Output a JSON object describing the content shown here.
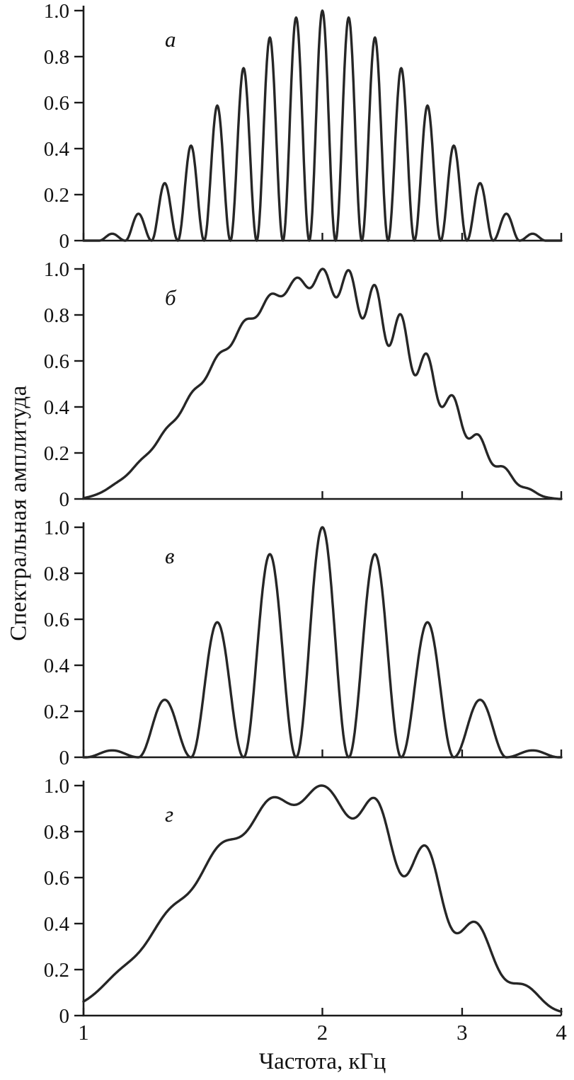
{
  "figure": {
    "x_title": "Частота, кГц",
    "y_title": "Спектральная амплитуда",
    "x_scale": "log",
    "x_range_khz": [
      1,
      4
    ],
    "y_range": [
      0,
      1
    ],
    "x_ticks": [
      {
        "value": 1,
        "label": "1"
      },
      {
        "value": 2,
        "label": "2"
      },
      {
        "value": 3,
        "label": "3"
      },
      {
        "value": 4,
        "label": "4"
      }
    ],
    "y_ticks": [
      {
        "value": 0,
        "label": "0"
      },
      {
        "value": 0.2,
        "label": "0.2"
      },
      {
        "value": 0.4,
        "label": "0.4"
      },
      {
        "value": 0.6,
        "label": "0.6"
      },
      {
        "value": 0.8,
        "label": "0.8"
      },
      {
        "value": 1.0,
        "label": "1.0"
      }
    ],
    "line_color": "#262626",
    "axis_color": "#1a1a1a"
  },
  "chart_data": [
    {
      "panel": "а",
      "type": "line",
      "xlabel": "Частота, кГц",
      "ylabel": "Спектральная амплитуда",
      "xlim": [
        1,
        4
      ],
      "ylim": [
        0,
        1
      ],
      "description": "narrow interference fringes under symmetric envelope, zeros between peaks",
      "peaks": [
        {
          "f": 1.09,
          "a": 0.03
        },
        {
          "f": 1.17,
          "a": 0.12
        },
        {
          "f": 1.27,
          "a": 0.25
        },
        {
          "f": 1.37,
          "a": 0.41
        },
        {
          "f": 1.47,
          "a": 0.59
        },
        {
          "f": 1.59,
          "a": 0.75
        },
        {
          "f": 1.72,
          "a": 0.88
        },
        {
          "f": 1.85,
          "a": 0.97
        },
        {
          "f": 2.0,
          "a": 1.0
        },
        {
          "f": 2.16,
          "a": 0.97
        },
        {
          "f": 2.33,
          "a": 0.88
        },
        {
          "f": 2.51,
          "a": 0.75
        },
        {
          "f": 2.71,
          "a": 0.59
        },
        {
          "f": 2.93,
          "a": 0.41
        },
        {
          "f": 3.16,
          "a": 0.25
        },
        {
          "f": 3.41,
          "a": 0.12
        },
        {
          "f": 3.68,
          "a": 0.03
        }
      ],
      "render": {
        "kind": "comb",
        "spacing_u": 0.055,
        "kmax": 8,
        "amps": [
          1.0,
          0.97,
          0.883,
          0.75,
          0.587,
          0.413,
          0.25,
          0.117,
          0.03
        ]
      }
    },
    {
      "panel": "б",
      "type": "line",
      "xlabel": "Частота, кГц",
      "ylabel": "Спектральная амплитуда",
      "xlim": [
        1,
        4
      ],
      "ylim": [
        0,
        1
      ],
      "description": "smooth broad hump, small ripples on top, decaying oscillation bumps on the high-frequency slope",
      "local_maxima": [
        {
          "f": 1.97,
          "a": 1.0
        },
        {
          "f": 2.16,
          "a": 0.97
        },
        {
          "f": 2.33,
          "a": 0.92
        },
        {
          "f": 2.51,
          "a": 0.79
        },
        {
          "f": 2.71,
          "a": 0.63
        },
        {
          "f": 2.93,
          "a": 0.45
        },
        {
          "f": 3.16,
          "a": 0.28
        },
        {
          "f": 3.41,
          "a": 0.14
        },
        {
          "f": 3.62,
          "a": 0.05
        }
      ],
      "render": {
        "kind": "smooth",
        "env_center": 0.49,
        "env_width": 1.02,
        "ripple_period": 0.055,
        "ripple_phase_u": 0.5,
        "m_base": 0.025,
        "m_extra": 0.115,
        "m_ramp_center": 0.55,
        "m_ramp_width": 0.25
      }
    },
    {
      "panel": "в",
      "type": "line",
      "xlabel": "Частота, кГц",
      "ylabel": "Спектральная амплитуда",
      "xlim": [
        1,
        4
      ],
      "ylim": [
        0,
        1
      ],
      "description": "wide interference fringes under symmetric envelope, zeros between peaks",
      "peaks": [
        {
          "f": 1.09,
          "a": 0.03
        },
        {
          "f": 1.27,
          "a": 0.25
        },
        {
          "f": 1.47,
          "a": 0.59
        },
        {
          "f": 1.72,
          "a": 0.88
        },
        {
          "f": 2.0,
          "a": 1.0
        },
        {
          "f": 2.33,
          "a": 0.88
        },
        {
          "f": 2.71,
          "a": 0.59
        },
        {
          "f": 3.16,
          "a": 0.25
        },
        {
          "f": 3.68,
          "a": 0.03
        }
      ],
      "render": {
        "kind": "comb",
        "spacing_u": 0.11,
        "kmax": 4,
        "amps": [
          1.0,
          0.883,
          0.587,
          0.25,
          0.03
        ]
      }
    },
    {
      "panel": "г",
      "type": "line",
      "xlabel": "Частота, кГц",
      "ylabel": "Спектральная амплитуда",
      "xlim": [
        1,
        4
      ],
      "ylim": [
        0,
        1
      ],
      "description": "smooth broad hump with a few large bumps on the high-frequency slope, nonzero at left edge",
      "local_maxima": [
        {
          "f": 1.72,
          "a": 0.88
        },
        {
          "f": 1.96,
          "a": 1.0
        },
        {
          "f": 2.33,
          "a": 0.93
        },
        {
          "f": 2.72,
          "a": 0.65
        },
        {
          "f": 3.16,
          "a": 0.3
        }
      ],
      "render": {
        "kind": "smooth",
        "env_center": 0.48,
        "env_width": 1.15,
        "ripple_period": 0.11,
        "ripple_phase_u": 0.5,
        "m_base": 0.04,
        "m_extra": 0.17,
        "m_ramp_center": 0.62,
        "m_ramp_width": 0.25
      }
    }
  ]
}
